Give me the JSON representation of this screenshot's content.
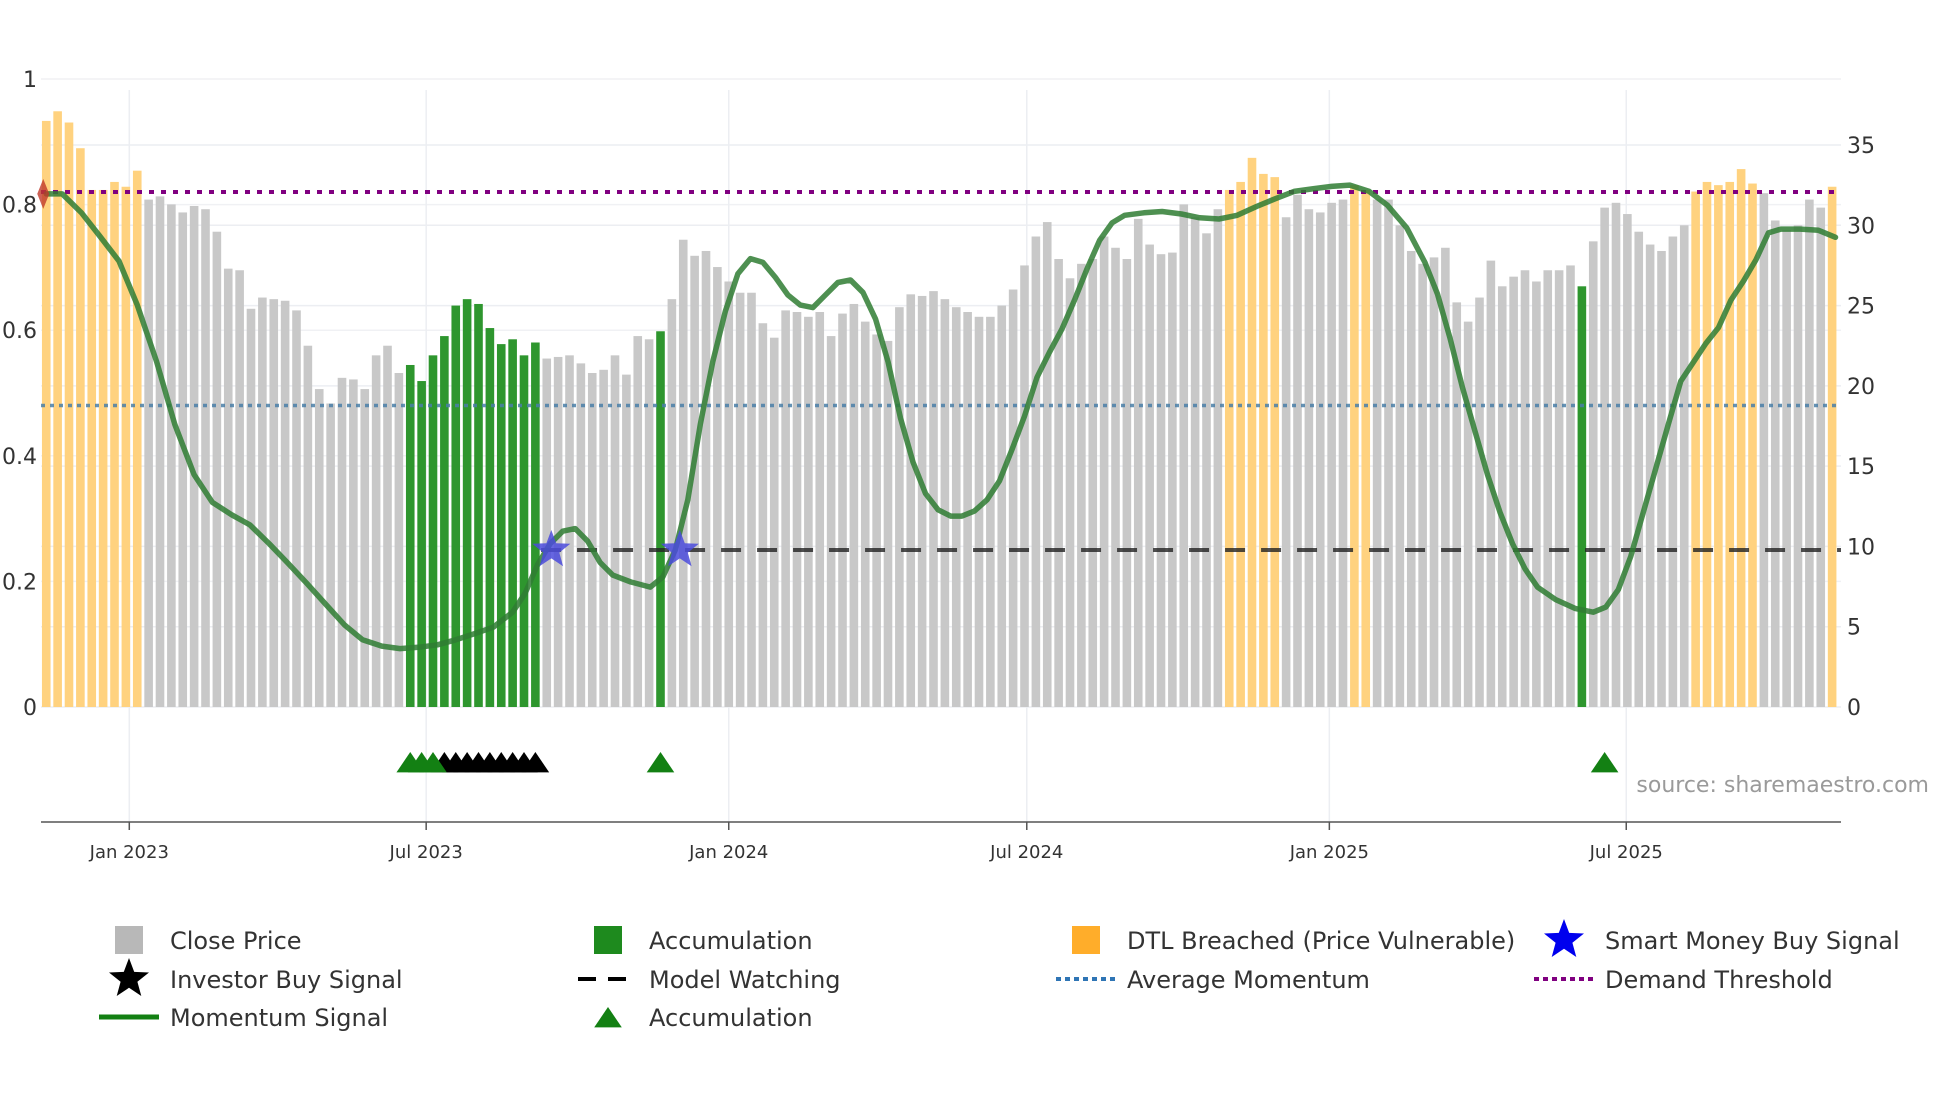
{
  "chart_data": {
    "type": "bar",
    "title": "",
    "x_unit": "bar index (bi-weekly)",
    "left_axis": {
      "range": [
        0,
        1
      ],
      "ticks": [
        0,
        0.2,
        0.4,
        0.6,
        0.8,
        1
      ],
      "labels": [
        "0",
        "0.2",
        "0.4",
        "0.6",
        "0.8",
        "1"
      ]
    },
    "right_axis": {
      "range": [
        0,
        35
      ],
      "ticks": [
        0,
        5,
        10,
        15,
        20,
        25,
        30,
        35
      ],
      "labels": [
        "0",
        "5",
        "10",
        "15",
        "20",
        "25",
        "30",
        "35"
      ]
    },
    "x_ticks": [
      {
        "x": 7.3,
        "label": "Jan 2023"
      },
      {
        "x": 33.4,
        "label": "Jul 2023"
      },
      {
        "x": 60.0,
        "label": "Jan 2024"
      },
      {
        "x": 86.2,
        "label": "Jul 2024"
      },
      {
        "x": 112.8,
        "label": "Jan 2025"
      },
      {
        "x": 138.9,
        "label": "Jul 2025"
      }
    ],
    "bar_segments": [
      {
        "type": "dtl",
        "values": [
          36.5,
          37.1,
          36.4,
          34.8,
          32.2,
          32.2,
          32.7,
          32.4,
          33.4
        ]
      },
      {
        "type": "close",
        "values": [
          31.6,
          31.8,
          31.3,
          30.8,
          31.2,
          31.0,
          29.6,
          27.3,
          27.2,
          24.8,
          25.5,
          25.4,
          25.3,
          24.7,
          22.5,
          19.8,
          18.9,
          20.5,
          20.4,
          19.8,
          21.9,
          22.5,
          20.8
        ]
      },
      {
        "type": "accumulation",
        "values": [
          21.3,
          20.3,
          21.9,
          23.1,
          25.0,
          25.4,
          25.1,
          23.6,
          22.6,
          22.9,
          21.9,
          22.7
        ]
      },
      {
        "type": "close",
        "values": [
          21.7,
          21.8,
          21.9,
          21.4,
          20.8,
          21.0,
          21.9,
          20.7,
          23.1,
          22.9
        ]
      },
      {
        "type": "accumulation",
        "values": [
          23.4
        ]
      },
      {
        "type": "close",
        "values": [
          25.4,
          29.1,
          28.1,
          28.4,
          27.4,
          26.5,
          25.8,
          25.8,
          23.9,
          23.0,
          24.7,
          24.6,
          24.3,
          24.6,
          23.1,
          24.5,
          25.1,
          24.0,
          23.2,
          22.8,
          24.9,
          25.7,
          25.6,
          25.9,
          25.4,
          24.9,
          24.6,
          24.3,
          24.3,
          25.0,
          26.0,
          27.5,
          29.3,
          30.2,
          27.9,
          26.7,
          27.6,
          27.9,
          29.3,
          28.6,
          27.9,
          30.4,
          28.8,
          28.2,
          28.3,
          31.3,
          30.5,
          29.5,
          31.0
        ]
      },
      {
        "type": "dtl",
        "values": [
          32.2,
          32.7,
          34.2,
          33.2,
          33.0
        ]
      },
      {
        "type": "close",
        "values": [
          30.5,
          31.9,
          31.0,
          30.8,
          31.4,
          31.6
        ]
      },
      {
        "type": "dtl",
        "values": [
          32.5,
          32.2
        ]
      },
      {
        "type": "close",
        "values": [
          31.6,
          31.6,
          30.0,
          28.4,
          27.6,
          28.0,
          28.6,
          25.2,
          24.0,
          25.5,
          27.8,
          26.2,
          26.8,
          27.2,
          26.5,
          27.2,
          27.2,
          27.5
        ]
      },
      {
        "type": "accumulation",
        "values": [
          26.2
        ]
      },
      {
        "type": "close",
        "values": [
          29.0,
          31.1,
          31.4,
          30.7,
          29.6,
          28.8,
          28.4,
          29.3,
          30.0
        ]
      },
      {
        "type": "dtl",
        "values": [
          32.1,
          32.7,
          32.5,
          32.7,
          33.5,
          32.6
        ]
      },
      {
        "type": "close",
        "values": [
          32.0,
          30.3,
          29.7,
          30.0,
          31.6,
          31.1
        ]
      },
      {
        "type": "dtl",
        "values": [
          32.4
        ]
      }
    ],
    "momentum": [
      [
        0,
        0.817
      ],
      [
        1.4,
        0.817
      ],
      [
        3.1,
        0.787
      ],
      [
        4.7,
        0.75
      ],
      [
        6.4,
        0.71
      ],
      [
        8.0,
        0.64
      ],
      [
        9.7,
        0.55
      ],
      [
        11.3,
        0.45
      ],
      [
        13.0,
        0.37
      ],
      [
        14.6,
        0.326
      ],
      [
        16.3,
        0.306
      ],
      [
        17.9,
        0.29
      ],
      [
        19.6,
        0.26
      ],
      [
        21.2,
        0.23
      ],
      [
        22.9,
        0.197
      ],
      [
        24.5,
        0.165
      ],
      [
        26.2,
        0.131
      ],
      [
        27.8,
        0.107
      ],
      [
        29.5,
        0.097
      ],
      [
        31.1,
        0.093
      ],
      [
        32.7,
        0.095
      ],
      [
        34.4,
        0.099
      ],
      [
        36.0,
        0.107
      ],
      [
        37.7,
        0.117
      ],
      [
        39.3,
        0.127
      ],
      [
        41.0,
        0.151
      ],
      [
        42.1,
        0.181
      ],
      [
        43.2,
        0.227
      ],
      [
        44.3,
        0.26
      ],
      [
        45.4,
        0.28
      ],
      [
        46.5,
        0.284
      ],
      [
        47.6,
        0.264
      ],
      [
        48.7,
        0.23
      ],
      [
        49.8,
        0.21
      ],
      [
        51.4,
        0.199
      ],
      [
        53.1,
        0.191
      ],
      [
        54.2,
        0.207
      ],
      [
        55.3,
        0.25
      ],
      [
        56.4,
        0.33
      ],
      [
        57.5,
        0.45
      ],
      [
        58.6,
        0.55
      ],
      [
        59.7,
        0.63
      ],
      [
        60.8,
        0.69
      ],
      [
        61.9,
        0.714
      ],
      [
        63.0,
        0.708
      ],
      [
        64.1,
        0.684
      ],
      [
        65.2,
        0.656
      ],
      [
        66.3,
        0.64
      ],
      [
        67.4,
        0.636
      ],
      [
        68.5,
        0.656
      ],
      [
        69.6,
        0.676
      ],
      [
        70.7,
        0.68
      ],
      [
        71.8,
        0.66
      ],
      [
        72.9,
        0.618
      ],
      [
        74.0,
        0.55
      ],
      [
        75.1,
        0.46
      ],
      [
        76.2,
        0.39
      ],
      [
        77.3,
        0.34
      ],
      [
        78.4,
        0.314
      ],
      [
        79.5,
        0.304
      ],
      [
        80.5,
        0.304
      ],
      [
        81.6,
        0.312
      ],
      [
        82.7,
        0.33
      ],
      [
        83.8,
        0.36
      ],
      [
        84.9,
        0.41
      ],
      [
        86.0,
        0.463
      ],
      [
        87.1,
        0.525
      ],
      [
        88.2,
        0.565
      ],
      [
        89.3,
        0.602
      ],
      [
        90.4,
        0.648
      ],
      [
        91.5,
        0.698
      ],
      [
        92.6,
        0.743
      ],
      [
        93.7,
        0.771
      ],
      [
        94.8,
        0.783
      ],
      [
        96.5,
        0.787
      ],
      [
        98.1,
        0.789
      ],
      [
        99.8,
        0.785
      ],
      [
        101.4,
        0.779
      ],
      [
        103.1,
        0.777
      ],
      [
        104.7,
        0.783
      ],
      [
        106.4,
        0.797
      ],
      [
        108.0,
        0.809
      ],
      [
        109.7,
        0.821
      ],
      [
        111.3,
        0.825
      ],
      [
        113.0,
        0.829
      ],
      [
        114.6,
        0.831
      ],
      [
        116.3,
        0.821
      ],
      [
        117.9,
        0.799
      ],
      [
        119.6,
        0.763
      ],
      [
        121.2,
        0.708
      ],
      [
        122.3,
        0.658
      ],
      [
        123.4,
        0.588
      ],
      [
        124.5,
        0.509
      ],
      [
        125.6,
        0.439
      ],
      [
        126.7,
        0.37
      ],
      [
        127.8,
        0.31
      ],
      [
        128.9,
        0.26
      ],
      [
        130.0,
        0.22
      ],
      [
        131.1,
        0.191
      ],
      [
        132.7,
        0.171
      ],
      [
        134.4,
        0.157
      ],
      [
        136.0,
        0.151
      ],
      [
        137.1,
        0.159
      ],
      [
        138.2,
        0.187
      ],
      [
        139.3,
        0.24
      ],
      [
        140.4,
        0.31
      ],
      [
        141.5,
        0.38
      ],
      [
        142.6,
        0.45
      ],
      [
        143.7,
        0.519
      ],
      [
        144.8,
        0.549
      ],
      [
        145.9,
        0.579
      ],
      [
        147.0,
        0.604
      ],
      [
        148.1,
        0.648
      ],
      [
        149.2,
        0.678
      ],
      [
        150.3,
        0.712
      ],
      [
        151.4,
        0.755
      ],
      [
        152.5,
        0.761
      ],
      [
        154.2,
        0.761
      ],
      [
        155.8,
        0.759
      ],
      [
        157.3,
        0.748
      ]
    ],
    "demand_threshold": 0.82,
    "average_momentum": 0.48,
    "model_watching": {
      "value": 0.25,
      "from_x": 43.5
    },
    "smart_money_buy_signals": [
      {
        "x": 44.4,
        "y": 0.25
      },
      {
        "x": 55.7,
        "y": 0.25
      }
    ],
    "start_marker": {
      "x": 0,
      "y": 0.817
    },
    "accumulation_triangles": [
      32,
      33,
      34,
      54,
      137
    ],
    "investor_buy_triangles": [
      35,
      36,
      37,
      38,
      39,
      40,
      41,
      42,
      43
    ],
    "legend": [
      {
        "key": "close",
        "label": "Close Price"
      },
      {
        "key": "accumulation",
        "label": "Accumulation"
      },
      {
        "key": "dtl",
        "label": "DTL Breached (Price Vulnerable)"
      },
      {
        "key": "smart",
        "label": "Smart Money Buy Signal"
      },
      {
        "key": "investor",
        "label": "Investor Buy Signal"
      },
      {
        "key": "watching",
        "label": "Model Watching"
      },
      {
        "key": "avg",
        "label": "Average Momentum"
      },
      {
        "key": "demand",
        "label": "Demand Threshold"
      },
      {
        "key": "momentum",
        "label": "Momentum Signal"
      },
      {
        "key": "acc_tri",
        "label": "Accumulation"
      }
    ],
    "source": "source: sharemaestro.com",
    "colors": {
      "close": "#c8c8c8",
      "accumulation": "#2e962e",
      "dtl": "#ffd27f",
      "momentum": "#2f7d32",
      "demand": "#800080",
      "avg": "#4a7fa8",
      "smart": "#4b4bdc",
      "investor": "#000000",
      "acc_tri": "#138013"
    }
  }
}
